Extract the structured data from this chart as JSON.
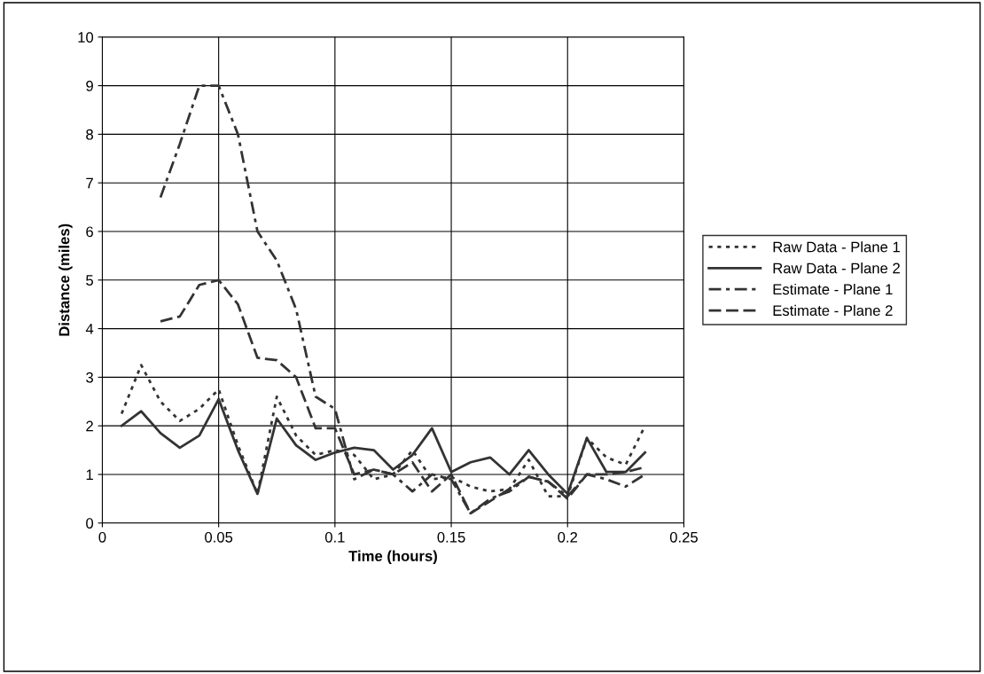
{
  "chart_data": {
    "type": "line",
    "xlabel": "Time (hours)",
    "ylabel": "Distance (miles)",
    "x": [
      0.0083,
      0.0167,
      0.025,
      0.0333,
      0.0417,
      0.05,
      0.0583,
      0.0667,
      0.075,
      0.0833,
      0.0917,
      0.1,
      0.1083,
      0.1167,
      0.125,
      0.1333,
      0.1417,
      0.15,
      0.1583,
      0.1667,
      0.175,
      0.1833,
      0.1917,
      0.2,
      0.2083,
      0.2167,
      0.225,
      0.2333
    ],
    "series": [
      {
        "name": "Raw Data - Plane 1",
        "color": "#333333",
        "line_style": "dotted",
        "values": [
          2.25,
          3.25,
          2.5,
          2.1,
          2.35,
          2.75,
          1.6,
          0.6,
          2.6,
          1.8,
          1.4,
          1.5,
          1.4,
          0.9,
          1.0,
          1.5,
          0.9,
          0.95,
          0.75,
          0.65,
          0.7,
          1.3,
          0.55,
          0.55,
          1.75,
          1.35,
          1.2,
          2.0
        ]
      },
      {
        "name": "Raw Data - Plane 2",
        "color": "#333333",
        "line_style": "solid",
        "values": [
          2.0,
          2.3,
          1.85,
          1.55,
          1.8,
          2.55,
          1.5,
          0.6,
          2.15,
          1.6,
          1.3,
          1.45,
          1.55,
          1.5,
          1.1,
          1.4,
          1.95,
          1.05,
          1.25,
          1.35,
          1.0,
          1.5,
          1.0,
          0.6,
          1.75,
          1.05,
          1.05,
          1.45
        ]
      },
      {
        "name": "Estimate - Plane 1",
        "color": "#333333",
        "line_style": "dashdot",
        "values": [
          null,
          null,
          6.7,
          7.8,
          9.0,
          9.0,
          8.0,
          6.0,
          5.4,
          4.4,
          2.6,
          2.35,
          0.9,
          1.1,
          1.0,
          0.65,
          1.0,
          0.9,
          0.2,
          0.5,
          0.65,
          0.95,
          0.85,
          0.55,
          1.0,
          0.9,
          0.75,
          1.0
        ]
      },
      {
        "name": "Estimate - Plane 2",
        "color": "#333333",
        "line_style": "dashed",
        "values": [
          null,
          null,
          4.15,
          4.25,
          4.9,
          5.0,
          4.5,
          3.4,
          3.35,
          3.0,
          1.95,
          1.95,
          1.0,
          1.1,
          1.0,
          1.25,
          0.65,
          1.0,
          0.2,
          0.45,
          0.7,
          0.95,
          0.85,
          0.5,
          1.0,
          1.0,
          1.05,
          1.15
        ]
      }
    ],
    "xlim": [
      0,
      0.25
    ],
    "xticks": [
      0,
      0.05,
      0.1,
      0.15,
      0.2,
      0.25
    ],
    "ylim": [
      0,
      10
    ],
    "yticks": [
      0,
      1,
      2,
      3,
      4,
      5,
      6,
      7,
      8,
      9,
      10
    ],
    "grid": true,
    "legend": "right",
    "marker": "none"
  }
}
